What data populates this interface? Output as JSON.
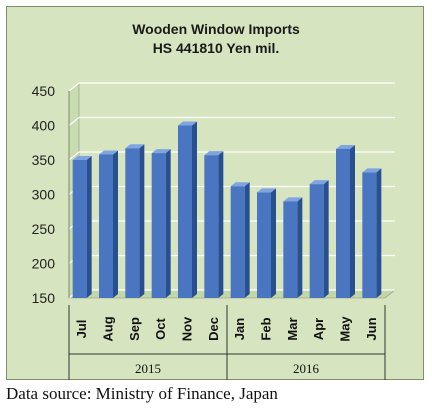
{
  "source_note": "Data source: Ministry of Finance, Japan",
  "colors": {
    "background": "#d6e5c0",
    "bar_front": "#4a76c1",
    "bar_side": "#284f8f",
    "bar_top": "#7fa5e0",
    "grid": "#ffffff"
  },
  "chart_data": {
    "type": "bar",
    "title": "Wooden Window Imports",
    "subtitle": "HS 441810 Yen mil.",
    "categories": [
      "Jul",
      "Aug",
      "Sep",
      "Oct",
      "Nov",
      "Dec",
      "Jan",
      "Feb",
      "Mar",
      "Apr",
      "May",
      "Jun"
    ],
    "year_groups": [
      {
        "label": "2015",
        "count": 6
      },
      {
        "label": "2016",
        "count": 6
      }
    ],
    "values": [
      350,
      358,
      367,
      360,
      400,
      357,
      312,
      303,
      290,
      315,
      366,
      332
    ],
    "ylim": [
      150,
      450
    ],
    "yticks": [
      150,
      200,
      250,
      300,
      350,
      400,
      450
    ],
    "xlabel": "",
    "ylabel": "",
    "grid": true,
    "legend": "none"
  }
}
